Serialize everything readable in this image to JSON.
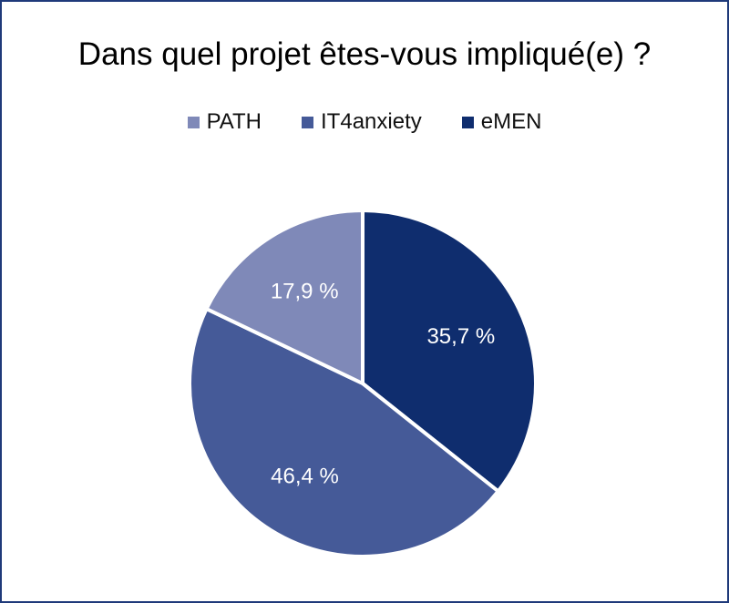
{
  "chart_data": {
    "type": "pie",
    "title": "Dans quel projet êtes-vous impliqué(e) ?",
    "legend_position": "top",
    "slices": [
      {
        "name": "PATH",
        "value": 17.9,
        "label": "17,9 %",
        "color": "#7f89b8"
      },
      {
        "name": "IT4anxiety",
        "value": 46.4,
        "label": "46,4 %",
        "color": "#455a98"
      },
      {
        "name": "eMEN",
        "value": 35.7,
        "label": "35,7 %",
        "color": "#0f2d6e"
      }
    ],
    "legend_order": [
      "PATH",
      "IT4anxiety",
      "eMEN"
    ],
    "start": "top, clockwise from eMEN"
  }
}
